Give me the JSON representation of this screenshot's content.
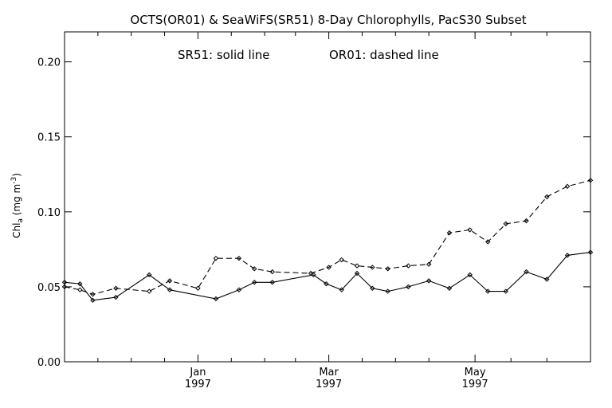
{
  "chart_data": {
    "type": "line",
    "title": "OCTS(OR01) & SeaWiFS(SR51) 8-Day Chlorophylls, PacS30 Subset",
    "annotation_solid": "SR51: solid line",
    "annotation_dashed": "OR01: dashed line",
    "ylabel": {
      "main": "Chl",
      "sub": "a",
      "unit": " (mg m",
      "exp": "-3",
      "close": ")"
    },
    "x_unit": "day offset since first plotted point",
    "xlim": [
      0,
      205
    ],
    "ylim": [
      0,
      0.22
    ],
    "yticks": [
      "0.00",
      "0.05",
      "0.10",
      "0.15",
      "0.20"
    ],
    "ytick_values": [
      0,
      0.05,
      0.1,
      0.15,
      0.2
    ],
    "xticks": [
      {
        "x": 52,
        "label1": "Jan",
        "label2": "1997"
      },
      {
        "x": 103,
        "label1": "Mar",
        "label2": "1997"
      },
      {
        "x": 160,
        "label1": "May",
        "label2": "1997"
      }
    ],
    "grid": false,
    "series": [
      {
        "name": "SR51",
        "style": "solid",
        "x": [
          0,
          6,
          11,
          20,
          33,
          41,
          59,
          68,
          74,
          81,
          97,
          102,
          108,
          114,
          120,
          126,
          134,
          142,
          150,
          158,
          165,
          172,
          180,
          188,
          196,
          205
        ],
        "y": [
          0.053,
          0.052,
          0.041,
          0.043,
          0.058,
          0.048,
          0.042,
          0.048,
          0.053,
          0.053,
          0.058,
          0.052,
          0.048,
          0.059,
          0.049,
          0.047,
          0.05,
          0.054,
          0.049,
          0.058,
          0.047,
          0.047,
          0.06,
          0.055,
          0.071,
          0.073
        ]
      },
      {
        "name": "OR01",
        "style": "dashed",
        "x": [
          0,
          6,
          11,
          20,
          33,
          41,
          52,
          59,
          68,
          74,
          81,
          96,
          103,
          108,
          114,
          120,
          126,
          134,
          142,
          150,
          158,
          165,
          172,
          180,
          188,
          196,
          205
        ],
        "y": [
          0.05,
          0.048,
          0.045,
          0.049,
          0.047,
          0.054,
          0.049,
          0.069,
          0.069,
          0.062,
          0.06,
          0.059,
          0.063,
          0.068,
          0.064,
          0.063,
          0.062,
          0.064,
          0.065,
          0.086,
          0.088,
          0.08,
          0.092,
          0.094,
          0.11,
          0.117,
          0.121
        ]
      }
    ]
  }
}
